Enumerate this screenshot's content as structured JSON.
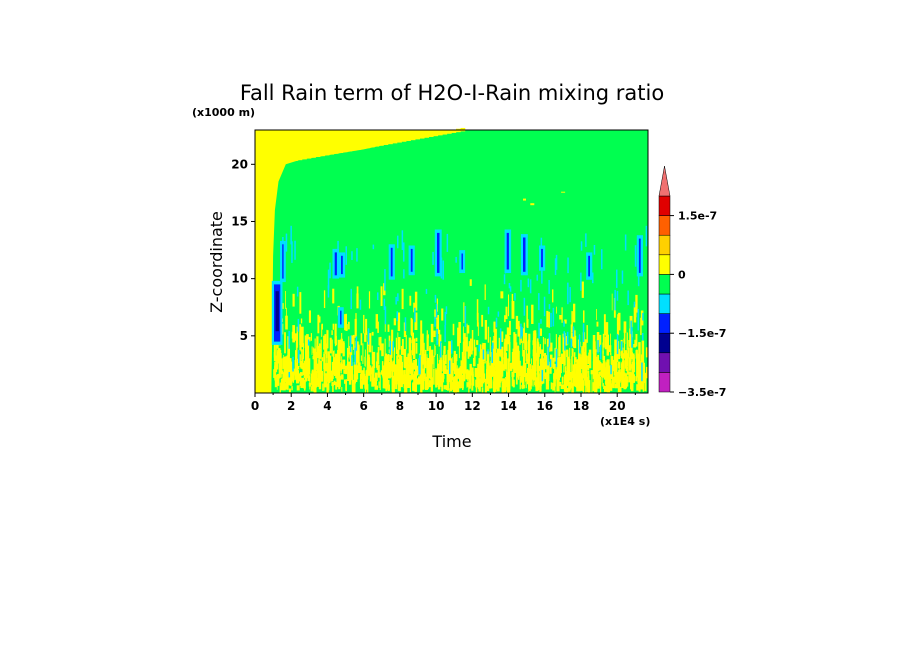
{
  "chart_data": {
    "type": "heatmap",
    "title": "Fall Rain term of H2O-I-Rain mixing ratio",
    "xlabel": "Time",
    "ylabel": "Z-coordinate",
    "x_unit": "(x1E4 s)",
    "y_unit": "(x1000 m)",
    "xlim": [
      0,
      21.7
    ],
    "ylim": [
      0,
      23
    ],
    "x_ticks": [
      "0",
      "2",
      "4",
      "6",
      "8",
      "10",
      "12",
      "14",
      "16",
      "18",
      "20"
    ],
    "y_ticks": [
      "5",
      "10",
      "15",
      "20"
    ],
    "colorbar": {
      "labels": [
        "1.5e-7",
        "0",
        "−1.5e-7",
        "−3.5e-7"
      ],
      "colors": [
        "#e0e0ff",
        "#c020c0",
        "#7010b0",
        "#000090",
        "#0020ff",
        "#00e0ff",
        "#00ff50",
        "#ffff00",
        "#ffd000",
        "#ff6000",
        "#e00000",
        "#f07070"
      ]
    },
    "colors": {
      "zero": "#00ff50",
      "positive": "#ffff00",
      "negative_weak": "#00e0ff",
      "negative": "#0020ff",
      "negative_strong": "#000090"
    }
  }
}
